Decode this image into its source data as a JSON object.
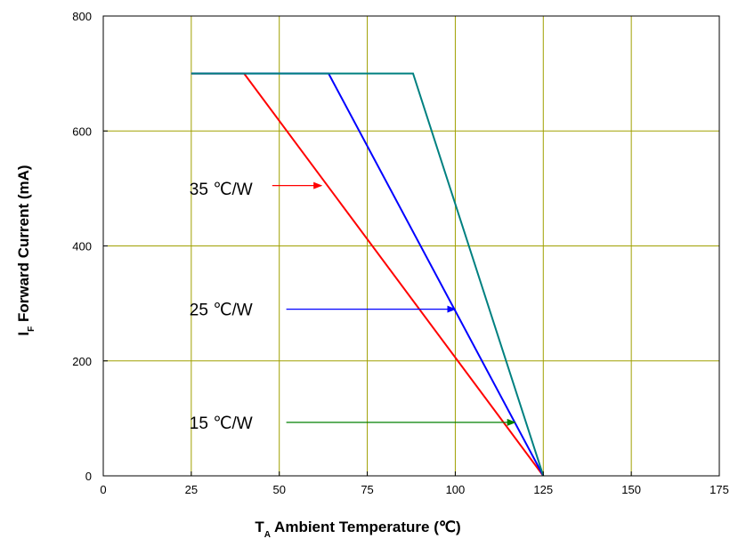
{
  "chart_data": {
    "type": "line",
    "xlabel_main": "T",
    "xlabel_sub": "A",
    "xlabel_rest": " Ambient Temperature (℃)",
    "ylabel_main": "I",
    "ylabel_sub": "F",
    "ylabel_rest": " Forward Current (mA)",
    "xlim": [
      0,
      175
    ],
    "ylim": [
      0,
      800
    ],
    "xticks": [
      0,
      25,
      50,
      75,
      100,
      125,
      150,
      175
    ],
    "yticks": [
      0,
      200,
      400,
      600,
      800
    ],
    "grid": true,
    "colors": {
      "grid": "#a0a000",
      "frame": "#000000"
    },
    "series": [
      {
        "name": "35 ℃/W",
        "color": "#ff0000",
        "x": [
          25,
          40,
          125
        ],
        "y": [
          700,
          700,
          0
        ]
      },
      {
        "name": "25 ℃/W",
        "color": "#0000ff",
        "x": [
          25,
          64,
          125
        ],
        "y": [
          700,
          700,
          0
        ]
      },
      {
        "name": "15 ℃/W",
        "color": "#008080",
        "x": [
          25,
          88,
          125
        ],
        "y": [
          700,
          700,
          0
        ]
      }
    ],
    "annotations": [
      {
        "text": "35 ℃/W",
        "arrow_color": "#ff0000",
        "label_x": 26.5,
        "label_y": 500,
        "arrow_from": [
          48,
          505
        ],
        "arrow_to": [
          62,
          505
        ]
      },
      {
        "text": "25 ℃/W",
        "arrow_color": "#0000ff",
        "label_x": 26.5,
        "label_y": 290,
        "arrow_from": [
          52,
          290
        ],
        "arrow_to": [
          100,
          290
        ]
      },
      {
        "text": "15 ℃/W",
        "arrow_color": "#008000",
        "label_x": 26.5,
        "label_y": 93,
        "arrow_from": [
          52,
          93
        ],
        "arrow_to": [
          117,
          93
        ]
      }
    ]
  }
}
